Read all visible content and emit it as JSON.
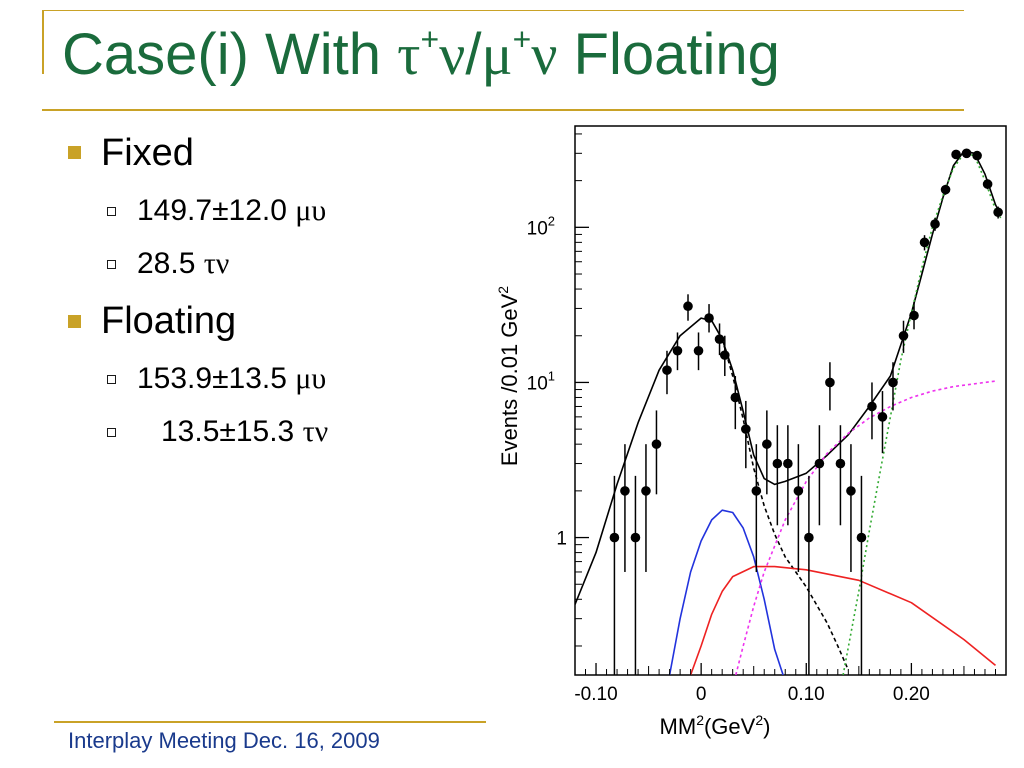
{
  "slide": {
    "title_prefix": "Case(i) With ",
    "title_tau": "τ",
    "title_plus1": "+",
    "title_nu1": "ν",
    "title_slash": "/",
    "title_mu": "μ",
    "title_plus2": "+",
    "title_nu2": "ν",
    "title_suffix": " Floating",
    "footer": "Interplay Meeting Dec. 16, 2009",
    "colors": {
      "title": "#1a6b3c",
      "accent": "#c9a227",
      "footer": "#1a3a8c"
    }
  },
  "bullets": [
    {
      "label": "Fixed",
      "sub": [
        {
          "value": "149.7±12.0 ",
          "unit": "μυ"
        },
        {
          "value": "28.5 ",
          "unit": "τν"
        }
      ]
    },
    {
      "label": "Floating",
      "sub": [
        {
          "value": "153.9±13.5 ",
          "unit": "μυ"
        },
        {
          "value": "13.5±15.3 ",
          "unit": "τν"
        }
      ]
    }
  ],
  "chart_data": {
    "type": "scatter",
    "y_scale": "log",
    "xlim": [
      -0.12,
      0.29
    ],
    "ylim": [
      0.13,
      450
    ],
    "xlabel_base": "MM",
    "xlabel_sup": "2",
    "xlabel_units": "(GeV",
    "xlabel_units_sup": "2",
    "xlabel_close": ")",
    "ylabel_base": "Events /0.01 GeV",
    "ylabel_sup": "2",
    "x_ticks": [
      {
        "value": -0.1,
        "label": "-0.10"
      },
      {
        "value": 0,
        "label": "0"
      },
      {
        "value": 0.1,
        "label": "0.10"
      },
      {
        "value": 0.2,
        "label": "0.20"
      }
    ],
    "y_ticks": [
      {
        "value": 1,
        "base": "1",
        "exp": ""
      },
      {
        "value": 10,
        "base": "10",
        "exp": "1"
      },
      {
        "value": 100,
        "base": "10",
        "exp": "2"
      }
    ],
    "points": [
      {
        "x": -0.0825,
        "y": 1,
        "lo": 0.13,
        "hi": 2.5
      },
      {
        "x": -0.0725,
        "y": 2,
        "lo": 0.6,
        "hi": 4
      },
      {
        "x": -0.0625,
        "y": 1,
        "lo": 0.13,
        "hi": 2.5
      },
      {
        "x": -0.0525,
        "y": 2,
        "lo": 0.6,
        "hi": 4
      },
      {
        "x": -0.0425,
        "y": 4,
        "lo": 1.9,
        "hi": 6.6
      },
      {
        "x": -0.0325,
        "y": 12,
        "lo": 8.4,
        "hi": 16
      },
      {
        "x": -0.0225,
        "y": 16,
        "lo": 12,
        "hi": 21
      },
      {
        "x": -0.0125,
        "y": 31,
        "lo": 25,
        "hi": 37
      },
      {
        "x": -0.0025,
        "y": 16,
        "lo": 12,
        "hi": 21
      },
      {
        "x": 0.0075,
        "y": 26,
        "lo": 21,
        "hi": 32
      },
      {
        "x": 0.0175,
        "y": 19,
        "lo": 15,
        "hi": 24
      },
      {
        "x": 0.0225,
        "y": 15,
        "lo": 11,
        "hi": 20
      },
      {
        "x": 0.0325,
        "y": 8,
        "lo": 5,
        "hi": 11
      },
      {
        "x": 0.0425,
        "y": 5,
        "lo": 2.8,
        "hi": 7.6
      },
      {
        "x": 0.0525,
        "y": 2,
        "lo": 0.6,
        "hi": 4
      },
      {
        "x": 0.0625,
        "y": 4,
        "lo": 1.9,
        "hi": 6.6
      },
      {
        "x": 0.0725,
        "y": 3,
        "lo": 1.2,
        "hi": 5.3
      },
      {
        "x": 0.0825,
        "y": 3,
        "lo": 1.2,
        "hi": 5.3
      },
      {
        "x": 0.0925,
        "y": 2,
        "lo": 0.6,
        "hi": 4
      },
      {
        "x": 0.1025,
        "y": 1,
        "lo": 0.13,
        "hi": 2.5
      },
      {
        "x": 0.1125,
        "y": 3,
        "lo": 1.2,
        "hi": 5.3
      },
      {
        "x": 0.1225,
        "y": 10,
        "lo": 6.6,
        "hi": 13.5
      },
      {
        "x": 0.1325,
        "y": 3,
        "lo": 1.2,
        "hi": 5.3
      },
      {
        "x": 0.1425,
        "y": 2,
        "lo": 0.6,
        "hi": 4
      },
      {
        "x": 0.1525,
        "y": 1,
        "lo": 0.13,
        "hi": 2.5
      },
      {
        "x": 0.1625,
        "y": 7,
        "lo": 4.3,
        "hi": 10
      },
      {
        "x": 0.1725,
        "y": 6,
        "lo": 3.5,
        "hi": 8.8
      },
      {
        "x": 0.1825,
        "y": 10,
        "lo": 6.6,
        "hi": 13.5
      },
      {
        "x": 0.1925,
        "y": 20,
        "lo": 15.5,
        "hi": 25
      },
      {
        "x": 0.2025,
        "y": 27,
        "lo": 22,
        "hi": 33
      },
      {
        "x": 0.2125,
        "y": 80,
        "lo": 71,
        "hi": 89
      },
      {
        "x": 0.2225,
        "y": 105,
        "lo": 95,
        "hi": 115
      },
      {
        "x": 0.2325,
        "y": 175,
        "lo": 162,
        "hi": 188
      },
      {
        "x": 0.2425,
        "y": 295,
        "lo": 278,
        "hi": 312
      },
      {
        "x": 0.2525,
        "y": 300,
        "lo": 283,
        "hi": 317
      },
      {
        "x": 0.2625,
        "y": 290,
        "lo": 273,
        "hi": 307
      },
      {
        "x": 0.2725,
        "y": 190,
        "lo": 176,
        "hi": 204
      },
      {
        "x": 0.2825,
        "y": 125,
        "lo": 114,
        "hi": 136
      }
    ],
    "curves": [
      {
        "style": "solid-black",
        "color": "#000000",
        "dash": "",
        "points": [
          [
            -0.12,
            0.37
          ],
          [
            -0.1,
            0.8
          ],
          [
            -0.08,
            2.2
          ],
          [
            -0.06,
            5.5
          ],
          [
            -0.04,
            12
          ],
          [
            -0.02,
            20
          ],
          [
            0,
            26
          ],
          [
            0.01,
            25
          ],
          [
            0.02,
            19
          ],
          [
            0.03,
            12
          ],
          [
            0.04,
            6.5
          ],
          [
            0.05,
            3.4
          ],
          [
            0.06,
            2.4
          ],
          [
            0.07,
            2.2
          ],
          [
            0.08,
            2.3
          ],
          [
            0.1,
            2.6
          ],
          [
            0.12,
            3.4
          ],
          [
            0.14,
            4.6
          ],
          [
            0.16,
            7
          ],
          [
            0.18,
            11
          ],
          [
            0.2,
            28
          ],
          [
            0.21,
            50
          ],
          [
            0.22,
            90
          ],
          [
            0.23,
            155
          ],
          [
            0.24,
            250
          ],
          [
            0.25,
            310
          ],
          [
            0.26,
            300
          ],
          [
            0.27,
            220
          ],
          [
            0.28,
            140
          ],
          [
            0.285,
            120
          ]
        ]
      },
      {
        "style": "dashed-black",
        "color": "#000000",
        "dash": "4,3",
        "points": [
          [
            0.02,
            19
          ],
          [
            0.03,
            11
          ],
          [
            0.04,
            5.8
          ],
          [
            0.05,
            2.8
          ],
          [
            0.06,
            1.6
          ],
          [
            0.07,
            1.05
          ],
          [
            0.08,
            0.75
          ],
          [
            0.09,
            0.6
          ],
          [
            0.1,
            0.48
          ],
          [
            0.12,
            0.28
          ],
          [
            0.13,
            0.2
          ],
          [
            0.14,
            0.14
          ]
        ]
      },
      {
        "style": "blue-solid",
        "color": "#2233dd",
        "dash": "",
        "points": [
          [
            -0.03,
            0.13
          ],
          [
            -0.02,
            0.3
          ],
          [
            -0.01,
            0.6
          ],
          [
            0,
            0.95
          ],
          [
            0.01,
            1.3
          ],
          [
            0.02,
            1.5
          ],
          [
            0.03,
            1.45
          ],
          [
            0.04,
            1.15
          ],
          [
            0.05,
            0.75
          ],
          [
            0.06,
            0.4
          ],
          [
            0.07,
            0.19
          ],
          [
            0.078,
            0.13
          ]
        ]
      },
      {
        "style": "red-solid",
        "color": "#ee2222",
        "dash": "",
        "points": [
          [
            -0.01,
            0.13
          ],
          [
            0,
            0.2
          ],
          [
            0.01,
            0.32
          ],
          [
            0.02,
            0.45
          ],
          [
            0.03,
            0.56
          ],
          [
            0.05,
            0.65
          ],
          [
            0.07,
            0.65
          ],
          [
            0.1,
            0.62
          ],
          [
            0.15,
            0.53
          ],
          [
            0.2,
            0.38
          ],
          [
            0.25,
            0.22
          ],
          [
            0.28,
            0.15
          ]
        ]
      },
      {
        "style": "magenta-dotted",
        "color": "#ee33ee",
        "dash": "3,3",
        "points": [
          [
            0.033,
            0.13
          ],
          [
            0.04,
            0.2
          ],
          [
            0.05,
            0.36
          ],
          [
            0.06,
            0.6
          ],
          [
            0.08,
            1.3
          ],
          [
            0.1,
            2.3
          ],
          [
            0.12,
            3.5
          ],
          [
            0.14,
            4.7
          ],
          [
            0.16,
            5.9
          ],
          [
            0.18,
            7
          ],
          [
            0.2,
            8
          ],
          [
            0.22,
            8.8
          ],
          [
            0.24,
            9.4
          ],
          [
            0.26,
            9.8
          ],
          [
            0.28,
            10.2
          ]
        ]
      },
      {
        "style": "green-dotted",
        "color": "#33aa33",
        "dash": "2,3",
        "points": [
          [
            0.135,
            0.13
          ],
          [
            0.15,
            0.45
          ],
          [
            0.16,
            1.1
          ],
          [
            0.17,
            2.6
          ],
          [
            0.18,
            6
          ],
          [
            0.19,
            14
          ],
          [
            0.2,
            28
          ],
          [
            0.21,
            55
          ],
          [
            0.22,
            100
          ],
          [
            0.23,
            160
          ],
          [
            0.24,
            240
          ],
          [
            0.25,
            300
          ],
          [
            0.26,
            290
          ],
          [
            0.27,
            200
          ],
          [
            0.28,
            130
          ],
          [
            0.285,
            115
          ]
        ]
      }
    ]
  }
}
